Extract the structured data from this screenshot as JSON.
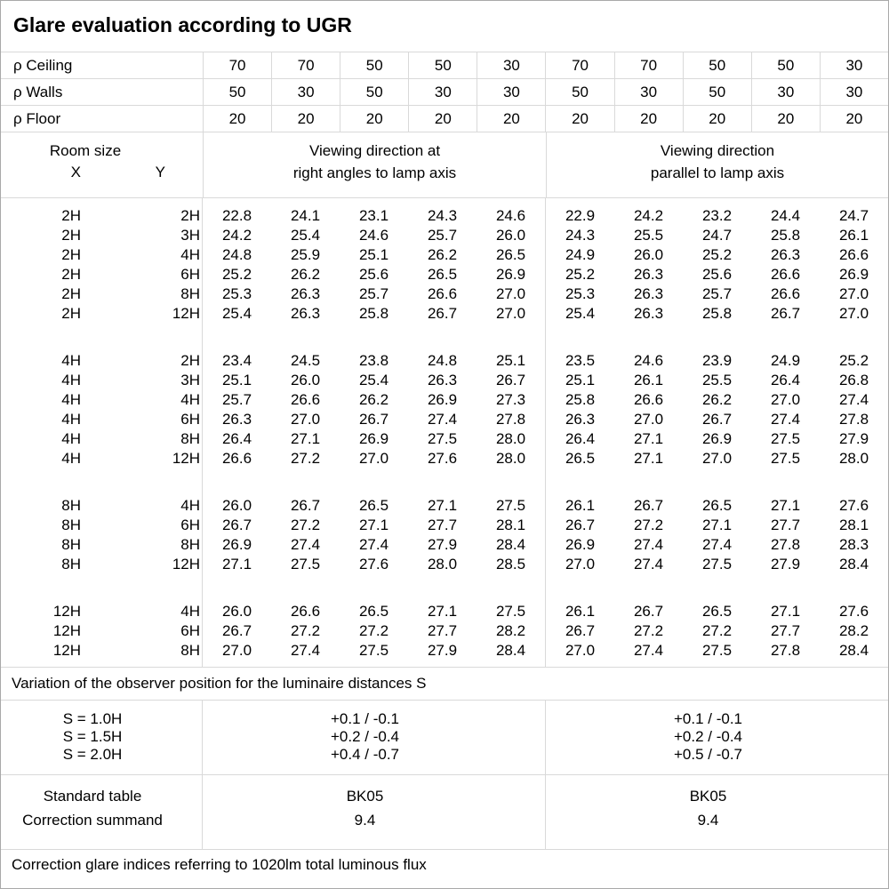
{
  "title": "Glare evaluation according to UGR",
  "reflectance_rows": [
    {
      "label": "ρ Ceiling",
      "values": [
        "70",
        "70",
        "50",
        "50",
        "30",
        "70",
        "70",
        "50",
        "50",
        "30"
      ]
    },
    {
      "label": "ρ Walls",
      "values": [
        "50",
        "30",
        "50",
        "30",
        "30",
        "50",
        "30",
        "50",
        "30",
        "30"
      ]
    },
    {
      "label": "ρ Floor",
      "values": [
        "20",
        "20",
        "20",
        "20",
        "20",
        "20",
        "20",
        "20",
        "20",
        "20"
      ]
    }
  ],
  "room_size_header": {
    "title": "Room size",
    "x_label": "X",
    "y_label": "Y"
  },
  "viewing_direction_headers": {
    "right_angles": [
      "Viewing direction at",
      "right angles to lamp axis"
    ],
    "parallel": [
      "Viewing direction",
      "parallel to lamp axis"
    ]
  },
  "ugr_table": {
    "blocks": [
      {
        "rows": [
          {
            "x": "2H",
            "y": "2H",
            "right_angles": [
              "22.8",
              "24.1",
              "23.1",
              "24.3",
              "24.6"
            ],
            "parallel": [
              "22.9",
              "24.2",
              "23.2",
              "24.4",
              "24.7"
            ]
          },
          {
            "x": "2H",
            "y": "3H",
            "right_angles": [
              "24.2",
              "25.4",
              "24.6",
              "25.7",
              "26.0"
            ],
            "parallel": [
              "24.3",
              "25.5",
              "24.7",
              "25.8",
              "26.1"
            ]
          },
          {
            "x": "2H",
            "y": "4H",
            "right_angles": [
              "24.8",
              "25.9",
              "25.1",
              "26.2",
              "26.5"
            ],
            "parallel": [
              "24.9",
              "26.0",
              "25.2",
              "26.3",
              "26.6"
            ]
          },
          {
            "x": "2H",
            "y": "6H",
            "right_angles": [
              "25.2",
              "26.2",
              "25.6",
              "26.5",
              "26.9"
            ],
            "parallel": [
              "25.2",
              "26.3",
              "25.6",
              "26.6",
              "26.9"
            ]
          },
          {
            "x": "2H",
            "y": "8H",
            "right_angles": [
              "25.3",
              "26.3",
              "25.7",
              "26.6",
              "27.0"
            ],
            "parallel": [
              "25.3",
              "26.3",
              "25.7",
              "26.6",
              "27.0"
            ]
          },
          {
            "x": "2H",
            "y": "12H",
            "right_angles": [
              "25.4",
              "26.3",
              "25.8",
              "26.7",
              "27.0"
            ],
            "parallel": [
              "25.4",
              "26.3",
              "25.8",
              "26.7",
              "27.0"
            ]
          }
        ]
      },
      {
        "rows": [
          {
            "x": "4H",
            "y": "2H",
            "right_angles": [
              "23.4",
              "24.5",
              "23.8",
              "24.8",
              "25.1"
            ],
            "parallel": [
              "23.5",
              "24.6",
              "23.9",
              "24.9",
              "25.2"
            ]
          },
          {
            "x": "4H",
            "y": "3H",
            "right_angles": [
              "25.1",
              "26.0",
              "25.4",
              "26.3",
              "26.7"
            ],
            "parallel": [
              "25.1",
              "26.1",
              "25.5",
              "26.4",
              "26.8"
            ]
          },
          {
            "x": "4H",
            "y": "4H",
            "right_angles": [
              "25.7",
              "26.6",
              "26.2",
              "26.9",
              "27.3"
            ],
            "parallel": [
              "25.8",
              "26.6",
              "26.2",
              "27.0",
              "27.4"
            ]
          },
          {
            "x": "4H",
            "y": "6H",
            "right_angles": [
              "26.3",
              "27.0",
              "26.7",
              "27.4",
              "27.8"
            ],
            "parallel": [
              "26.3",
              "27.0",
              "26.7",
              "27.4",
              "27.8"
            ]
          },
          {
            "x": "4H",
            "y": "8H",
            "right_angles": [
              "26.4",
              "27.1",
              "26.9",
              "27.5",
              "28.0"
            ],
            "parallel": [
              "26.4",
              "27.1",
              "26.9",
              "27.5",
              "27.9"
            ]
          },
          {
            "x": "4H",
            "y": "12H",
            "right_angles": [
              "26.6",
              "27.2",
              "27.0",
              "27.6",
              "28.0"
            ],
            "parallel": [
              "26.5",
              "27.1",
              "27.0",
              "27.5",
              "28.0"
            ]
          }
        ]
      },
      {
        "rows": [
          {
            "x": "8H",
            "y": "4H",
            "right_angles": [
              "26.0",
              "26.7",
              "26.5",
              "27.1",
              "27.5"
            ],
            "parallel": [
              "26.1",
              "26.7",
              "26.5",
              "27.1",
              "27.6"
            ]
          },
          {
            "x": "8H",
            "y": "6H",
            "right_angles": [
              "26.7",
              "27.2",
              "27.1",
              "27.7",
              "28.1"
            ],
            "parallel": [
              "26.7",
              "27.2",
              "27.1",
              "27.7",
              "28.1"
            ]
          },
          {
            "x": "8H",
            "y": "8H",
            "right_angles": [
              "26.9",
              "27.4",
              "27.4",
              "27.9",
              "28.4"
            ],
            "parallel": [
              "26.9",
              "27.4",
              "27.4",
              "27.8",
              "28.3"
            ]
          },
          {
            "x": "8H",
            "y": "12H",
            "right_angles": [
              "27.1",
              "27.5",
              "27.6",
              "28.0",
              "28.5"
            ],
            "parallel": [
              "27.0",
              "27.4",
              "27.5",
              "27.9",
              "28.4"
            ]
          }
        ]
      },
      {
        "rows": [
          {
            "x": "12H",
            "y": "4H",
            "right_angles": [
              "26.0",
              "26.6",
              "26.5",
              "27.1",
              "27.5"
            ],
            "parallel": [
              "26.1",
              "26.7",
              "26.5",
              "27.1",
              "27.6"
            ]
          },
          {
            "x": "12H",
            "y": "6H",
            "right_angles": [
              "26.7",
              "27.2",
              "27.2",
              "27.7",
              "28.2"
            ],
            "parallel": [
              "26.7",
              "27.2",
              "27.2",
              "27.7",
              "28.2"
            ]
          },
          {
            "x": "12H",
            "y": "8H",
            "right_angles": [
              "27.0",
              "27.4",
              "27.5",
              "27.9",
              "28.4"
            ],
            "parallel": [
              "27.0",
              "27.4",
              "27.5",
              "27.8",
              "28.4"
            ]
          }
        ]
      }
    ]
  },
  "variation_note": "Variation of the observer position for the luminaire distances S",
  "spacing_variation": {
    "rows": [
      {
        "label": "S = 1.0H",
        "right_angles": "+0.1 / -0.1",
        "parallel": "+0.1 / -0.1"
      },
      {
        "label": "S = 1.5H",
        "right_angles": "+0.2 / -0.4",
        "parallel": "+0.2 / -0.4"
      },
      {
        "label": "S = 2.0H",
        "right_angles": "+0.4 / -0.7",
        "parallel": "+0.5 / -0.7"
      }
    ]
  },
  "standard": {
    "rows": [
      {
        "label": "Standard table",
        "right_angles": "BK05",
        "parallel": "BK05"
      },
      {
        "label": "Correction summand",
        "right_angles": "9.4",
        "parallel": "9.4"
      }
    ]
  },
  "footer_note": "Correction glare indices referring to 1020lm total luminous flux",
  "colors": {
    "grid_line": "#d9d9d9",
    "outer_border": "#a9a9a9",
    "text": "#000000",
    "background": "#ffffff"
  }
}
